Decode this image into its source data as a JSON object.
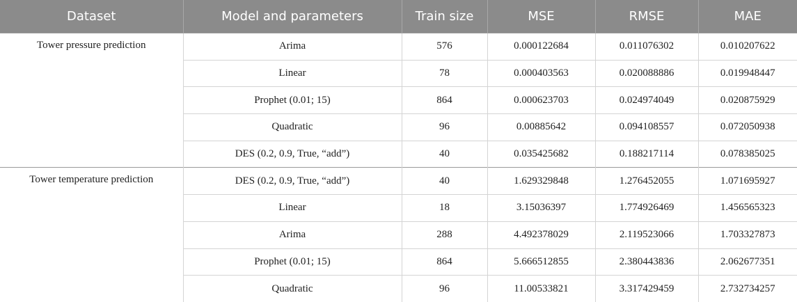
{
  "table": {
    "header": [
      "Dataset",
      "Model and parameters",
      "Train size",
      "MSE",
      "RMSE",
      "MAE"
    ],
    "groups": [
      {
        "dataset": "Tower pressure prediction",
        "rows": [
          [
            "Arima",
            "576",
            "0.000122684",
            "0.011076302",
            "0.010207622"
          ],
          [
            "Linear",
            "78",
            "0.000403563",
            "0.020088886",
            "0.019948447"
          ],
          [
            "Prophet (0.01; 15)",
            "864",
            "0.000623703",
            "0.024974049",
            "0.020875929"
          ],
          [
            "Quadratic",
            "96",
            "0.00885642",
            "0.094108557",
            "0.072050938"
          ],
          [
            "DES (0.2, 0.9, True, “add”)",
            "40",
            "0.035425682",
            "0.188217114",
            "0.078385025"
          ]
        ]
      },
      {
        "dataset": "Tower temperature prediction",
        "rows": [
          [
            "DES (0.2, 0.9, True, “add”)",
            "40",
            "1.629329848",
            "1.276452055",
            "1.071695927"
          ],
          [
            "Linear",
            "18",
            "3.15036397",
            "1.774926469",
            "1.456565323"
          ],
          [
            "Arima",
            "288",
            "4.492378029",
            "2.119523066",
            "1.703327873"
          ],
          [
            "Prophet (0.01; 15)",
            "864",
            "5.666512855",
            "2.380443836",
            "2.062677351"
          ],
          [
            "Quadratic",
            "96",
            "11.00533821",
            "3.317429459",
            "2.732734257"
          ]
        ]
      }
    ]
  }
}
